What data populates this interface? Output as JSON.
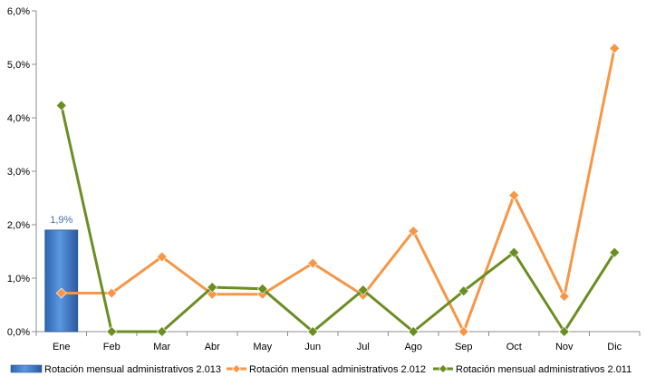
{
  "chart_data": {
    "type": "bar",
    "categories": [
      "Ene",
      "Feb",
      "Mar",
      "Abr",
      "May",
      "Jun",
      "Jul",
      "Ago",
      "Sep",
      "Oct",
      "Nov",
      "Dic"
    ],
    "y_tick_labels": [
      "0,0%",
      "1,0%",
      "2,0%",
      "3,0%",
      "4,0%",
      "5,0%",
      "6,0%"
    ],
    "ylim": [
      0,
      6
    ],
    "y_unit": "%",
    "grid": false,
    "legend_position": "bottom",
    "series": [
      {
        "name": "Rotación mensual administrativos 2.013",
        "kind": "bar",
        "color": "#3d7fd0",
        "values": [
          1.9,
          null,
          null,
          null,
          null,
          null,
          null,
          null,
          null,
          null,
          null,
          null
        ],
        "data_labels": [
          "1,9%"
        ]
      },
      {
        "name": "Rotación mensual administrativos 2.012",
        "kind": "line",
        "color": "#f79646",
        "marker": "diamond",
        "values": [
          0.72,
          0.72,
          1.4,
          0.7,
          0.7,
          1.28,
          0.68,
          1.88,
          0.0,
          2.55,
          0.66,
          5.3
        ]
      },
      {
        "name": "Rotación mensual administrativos 2.011",
        "kind": "line",
        "color": "#6b8e23",
        "marker": "diamond",
        "values": [
          4.23,
          0.0,
          0.0,
          0.83,
          0.8,
          0.0,
          0.78,
          0.0,
          0.76,
          1.48,
          0.0,
          1.48
        ]
      }
    ]
  }
}
